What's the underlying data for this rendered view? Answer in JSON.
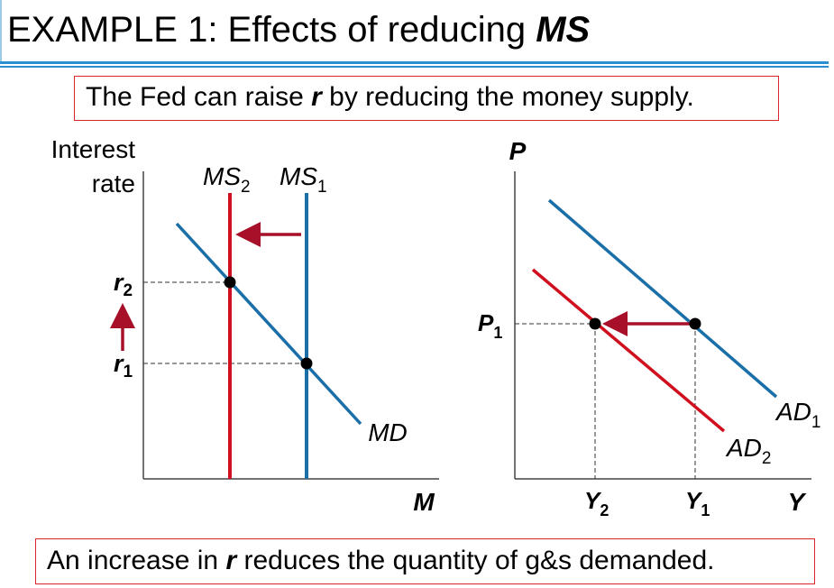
{
  "title": {
    "prefix": "EXAMPLE 1: Effects of reducing ",
    "emphasis": "MS"
  },
  "top_note": {
    "before": "The Fed can raise ",
    "emphasis": "r",
    "after": " by reducing the money supply."
  },
  "bottom_note": {
    "before": "An increase in ",
    "emphasis": "r",
    "after": " reduces the quantity of g&s demanded."
  },
  "colors": {
    "blue": "#1b6fa8",
    "red": "#d0101e",
    "arrow": "#a8102a",
    "box_border": "#d9242a"
  },
  "money_market": {
    "y_axis_label_line1": "Interest",
    "y_axis_label_line2": "rate",
    "x_axis_label": "M",
    "ms1": {
      "base": "MS",
      "sub": "1"
    },
    "ms2": {
      "base": "MS",
      "sub": "2"
    },
    "md_label": "MD",
    "r1": {
      "base": "r",
      "sub": "1"
    },
    "r2": {
      "base": "r",
      "sub": "2"
    }
  },
  "ad_as": {
    "y_axis_label": "P",
    "x_axis_label": "Y",
    "p1": {
      "base": "P",
      "sub": "1"
    },
    "y1": {
      "base": "Y",
      "sub": "1"
    },
    "y2": {
      "base": "Y",
      "sub": "2"
    },
    "ad1": {
      "base": "AD",
      "sub": "1"
    },
    "ad2": {
      "base": "AD",
      "sub": "2"
    }
  }
}
